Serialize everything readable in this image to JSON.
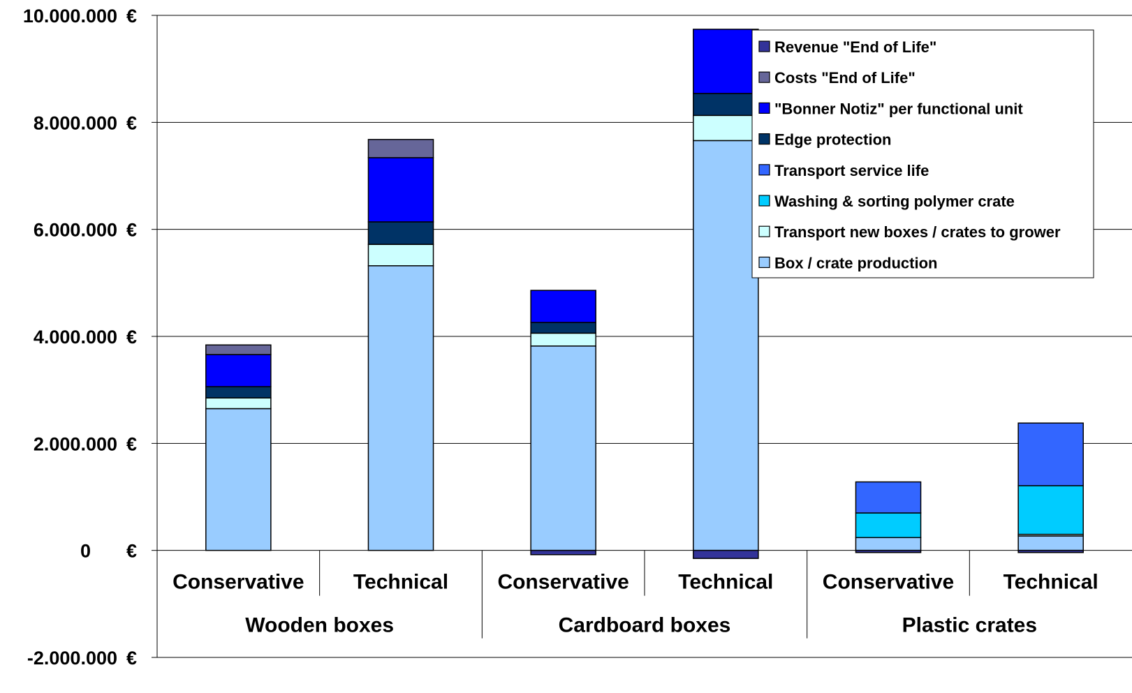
{
  "chart_data": {
    "type": "bar",
    "stacked": true,
    "title": "",
    "xlabel": "",
    "ylabel": "",
    "ylim": [
      -2000000,
      10000000
    ],
    "y_ticks": [
      -2000000,
      0,
      2000000,
      4000000,
      6000000,
      8000000,
      10000000
    ],
    "y_tick_labels": [
      "-2.000.000 €",
      "0 €",
      "2.000.000 €",
      "4.000.000 €",
      "6.000.000 €",
      "8.000.000 €",
      "10.000.000 €"
    ],
    "grid": true,
    "legend_position": "top-right",
    "groups": [
      "Wooden boxes",
      "Cardboard boxes",
      "Plastic crates"
    ],
    "categories": [
      "Conservative",
      "Technical",
      "Conservative",
      "Technical",
      "Conservative",
      "Technical"
    ],
    "category_group": [
      0,
      0,
      1,
      1,
      2,
      2
    ],
    "series": [
      {
        "name": "Box / crate production",
        "color": "#99ccff",
        "values": [
          2650000,
          5320000,
          3820000,
          7660000,
          240000,
          270000
        ]
      },
      {
        "name": "Transport new boxes / crates to grower",
        "color": "#ccffff",
        "values": [
          200000,
          400000,
          240000,
          470000,
          0,
          30000
        ]
      },
      {
        "name": "Washing & sorting polymer crate",
        "color": "#00ccff",
        "values": [
          0,
          0,
          0,
          0,
          460000,
          910000
        ]
      },
      {
        "name": "Transport service life",
        "color": "#3366ff",
        "values": [
          0,
          0,
          0,
          0,
          580000,
          1170000
        ]
      },
      {
        "name": "Edge protection",
        "color": "#003366",
        "values": [
          210000,
          420000,
          200000,
          410000,
          0,
          0
        ]
      },
      {
        "name": "\"Bonner Notiz\" per functional unit",
        "color": "#0000ff",
        "values": [
          600000,
          1200000,
          600000,
          1200000,
          0,
          0
        ]
      },
      {
        "name": "Costs \"End of Life\"",
        "color": "#666699",
        "values": [
          180000,
          340000,
          0,
          0,
          0,
          0
        ]
      },
      {
        "name": "Revenue \"End of Life\"",
        "color": "#333399",
        "values": [
          0,
          0,
          -80000,
          -150000,
          -40000,
          -40000
        ]
      }
    ]
  }
}
